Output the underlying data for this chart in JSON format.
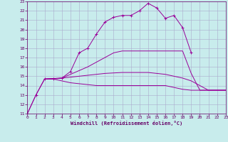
{
  "xlabel": "Windchill (Refroidissement éolien,°C)",
  "bg_color": "#c8ecec",
  "grid_color": "#aaaacc",
  "line_color": "#990099",
  "label_color": "#660066",
  "xlim": [
    0,
    23
  ],
  "ylim": [
    11,
    23
  ],
  "xticks": [
    0,
    1,
    2,
    3,
    4,
    5,
    6,
    7,
    8,
    9,
    10,
    11,
    12,
    13,
    14,
    15,
    16,
    17,
    18,
    19,
    20,
    21,
    22,
    23
  ],
  "yticks": [
    11,
    12,
    13,
    14,
    15,
    16,
    17,
    18,
    19,
    20,
    21,
    22,
    23
  ],
  "s1_x": [
    0,
    1,
    2,
    3,
    4,
    5,
    6,
    7,
    8,
    9,
    10,
    11,
    12,
    13,
    14,
    15,
    16,
    17,
    18,
    19
  ],
  "s1_y": [
    11.0,
    13.0,
    14.7,
    14.75,
    14.8,
    15.5,
    17.5,
    18.0,
    19.5,
    20.8,
    21.3,
    21.5,
    21.5,
    22.0,
    22.8,
    22.3,
    21.2,
    21.5,
    20.2,
    17.5
  ],
  "s2_x": [
    2,
    3,
    4,
    5,
    6,
    7,
    8,
    9,
    10,
    11,
    12,
    13,
    14,
    15,
    16,
    17,
    18,
    19,
    20,
    21,
    22,
    23
  ],
  "s2_y": [
    14.7,
    14.7,
    14.8,
    15.2,
    15.6,
    16.0,
    16.5,
    17.0,
    17.5,
    17.7,
    17.7,
    17.7,
    17.7,
    17.7,
    17.7,
    17.7,
    17.7,
    15.3,
    13.5,
    13.5,
    13.5,
    13.5
  ],
  "s3_x": [
    2,
    3,
    4,
    5,
    6,
    7,
    8,
    9,
    10,
    11,
    12,
    13,
    14,
    15,
    16,
    17,
    18,
    19,
    20,
    21,
    22,
    23
  ],
  "s3_y": [
    14.7,
    14.75,
    14.8,
    14.9,
    15.0,
    15.1,
    15.2,
    15.3,
    15.35,
    15.4,
    15.4,
    15.4,
    15.4,
    15.3,
    15.2,
    15.0,
    14.8,
    14.5,
    14.0,
    13.5,
    13.5,
    13.5
  ],
  "s4_x": [
    0,
    1,
    2,
    3,
    4,
    5,
    6,
    7,
    8,
    9,
    10,
    11,
    12,
    13,
    14,
    15,
    16,
    17,
    18,
    19,
    20,
    21,
    22,
    23
  ],
  "s4_y": [
    11.0,
    13.0,
    14.7,
    14.7,
    14.5,
    14.3,
    14.2,
    14.1,
    14.0,
    14.0,
    14.0,
    14.0,
    14.0,
    14.0,
    14.0,
    14.0,
    14.0,
    13.8,
    13.6,
    13.5,
    13.5,
    13.5,
    13.5,
    13.5
  ]
}
